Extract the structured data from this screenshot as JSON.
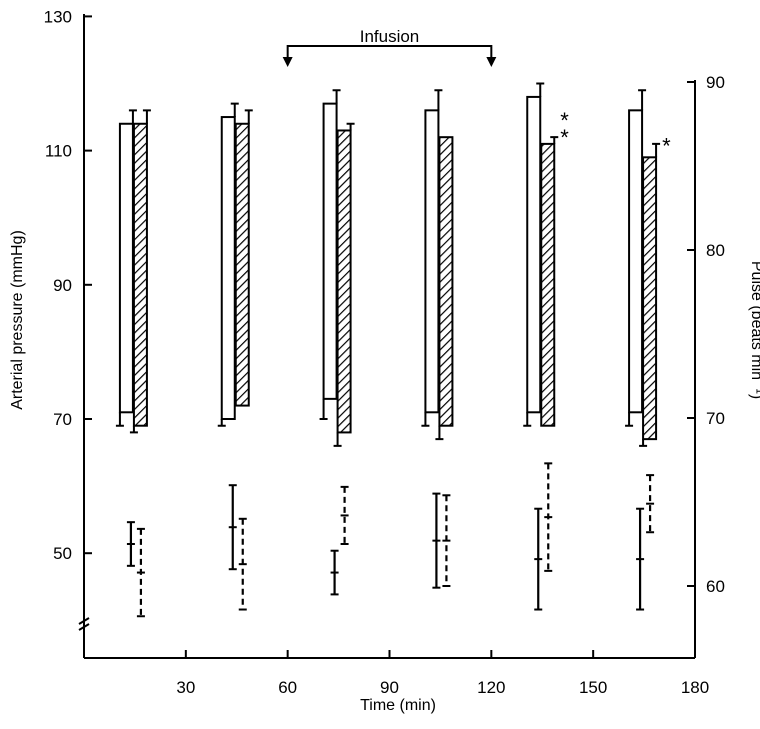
{
  "chart_data": {
    "type": "bar",
    "annotation": {
      "label": "Infusion",
      "start": 60,
      "end": 120
    },
    "x_axis": {
      "label": "Time (min)",
      "ticks": [
        30,
        60,
        90,
        120,
        150,
        180
      ],
      "range": [
        0,
        180
      ]
    },
    "y_left": {
      "label": "Arterial pressure (mmHg)",
      "ticks": [
        50,
        70,
        90,
        110,
        130
      ],
      "range": [
        40,
        130
      ],
      "broken_axis": true
    },
    "y_right": {
      "label": "Pulse (beats min⁻¹)",
      "ticks": [
        60,
        70,
        80,
        90
      ],
      "range": [
        55,
        90
      ]
    },
    "time_points": [
      15,
      45,
      75,
      105,
      135,
      165
    ],
    "series": [
      {
        "style": "open",
        "systolic": [
          114,
          115,
          117,
          116,
          118,
          116
        ],
        "systolic_err": [
          2,
          2,
          2,
          3,
          2,
          3
        ],
        "diastolic": [
          71,
          70,
          73,
          71,
          71,
          71
        ],
        "diastolic_err": [
          2,
          1,
          3,
          2,
          2,
          2
        ]
      },
      {
        "style": "hatched",
        "systolic": [
          114,
          114,
          113,
          112,
          111,
          109
        ],
        "systolic_err": [
          2,
          2,
          1,
          0,
          1,
          2
        ],
        "diastolic": [
          69,
          72,
          68,
          69,
          69,
          67
        ],
        "diastolic_err": [
          1,
          0,
          2,
          2,
          0,
          1
        ],
        "significance": [
          "",
          "",
          "",
          "",
          "* *",
          "*"
        ]
      }
    ],
    "pulse": [
      {
        "style": "solid",
        "mean": [
          62.5,
          63.5,
          60.8,
          62.7,
          61.6,
          61.6
        ],
        "err": [
          1.3,
          2.5,
          1.3,
          2.8,
          3.0,
          3.0
        ]
      },
      {
        "style": "dashed",
        "mean": [
          60.8,
          61.3,
          64.2,
          62.7,
          64.1,
          64.9
        ],
        "err": [
          2.6,
          2.7,
          1.7,
          2.7,
          3.2,
          1.7
        ]
      }
    ]
  }
}
